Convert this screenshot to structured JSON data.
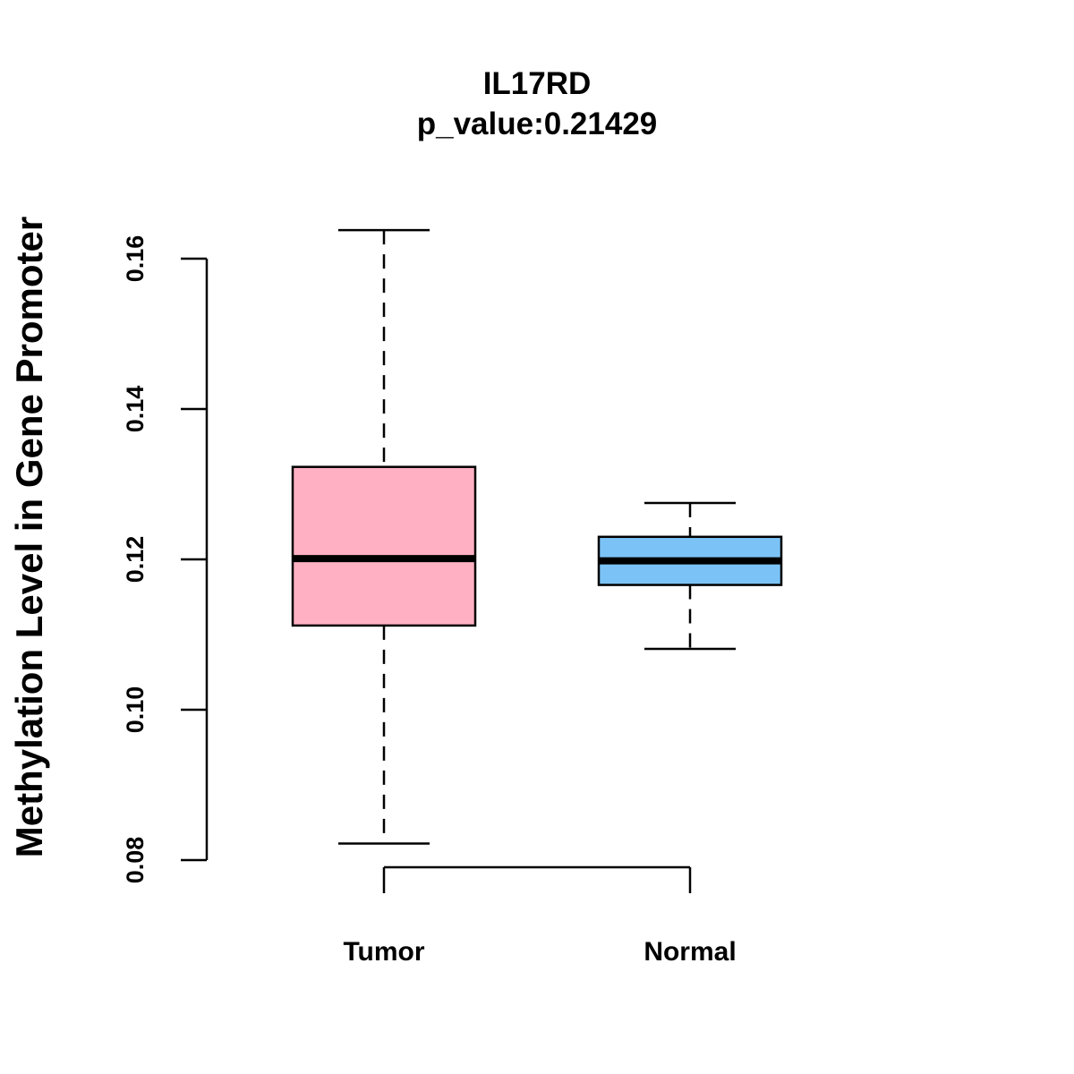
{
  "chart_data": {
    "type": "boxplot",
    "title": "IL17RD",
    "subtitle": "p_value:0.21429",
    "xlabel": "",
    "ylabel": "Methylation Level in Gene Promoter",
    "ylim": [
      0.08,
      0.16
    ],
    "yticks": [
      0.08,
      0.1,
      0.12,
      0.14,
      0.16
    ],
    "ytick_labels": [
      "0.08",
      "0.10",
      "0.12",
      "0.14",
      "0.16"
    ],
    "grid": false,
    "categories": [
      "Tumor",
      "Normal"
    ],
    "boxes": [
      {
        "name": "Tumor",
        "min": 0.0822,
        "q1": 0.1112,
        "median": 0.1201,
        "q3": 0.1323,
        "max": 0.1638,
        "color": "#FFB1C3"
      },
      {
        "name": "Normal",
        "min": 0.1081,
        "q1": 0.1166,
        "median": 0.1198,
        "q3": 0.123,
        "max": 0.1275,
        "color": "#7BC3F7"
      }
    ]
  }
}
